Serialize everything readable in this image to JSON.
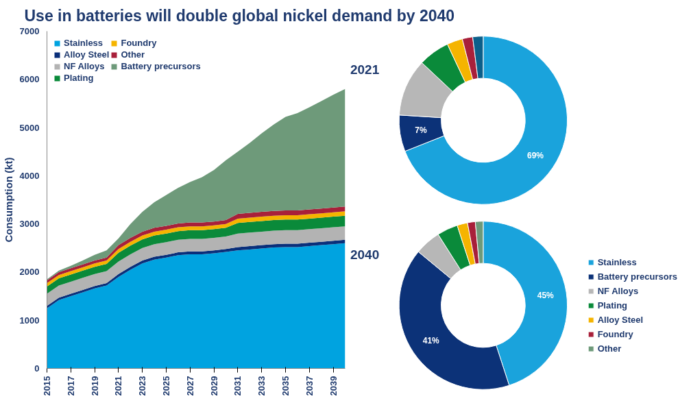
{
  "chart_data": [
    {
      "type": "area",
      "stacked": true,
      "title": "Use in batteries will double global nickel demand by 2040",
      "ylabel": "Consumption (kt)",
      "x": [
        2015,
        2016,
        2017,
        2018,
        2019,
        2020,
        2021,
        2022,
        2023,
        2024,
        2025,
        2026,
        2027,
        2028,
        2029,
        2030,
        2031,
        2032,
        2033,
        2034,
        2035,
        2036,
        2037,
        2038,
        2039,
        2040
      ],
      "xlim": [
        2015,
        2040
      ],
      "xticks": [
        2015,
        2017,
        2019,
        2021,
        2023,
        2025,
        2027,
        2029,
        2031,
        2033,
        2035,
        2037,
        2039
      ],
      "ylim": [
        0,
        7000
      ],
      "yticks": [
        0,
        1000,
        2000,
        3000,
        4000,
        5000,
        6000,
        7000
      ],
      "grid": false,
      "legend": "top left",
      "series": [
        {
          "name": "Stainless",
          "color": "#00a3e0",
          "values": [
            1250,
            1420,
            1500,
            1580,
            1660,
            1720,
            1900,
            2050,
            2180,
            2260,
            2300,
            2350,
            2370,
            2370,
            2390,
            2420,
            2450,
            2470,
            2490,
            2510,
            2520,
            2520,
            2540,
            2560,
            2580,
            2600
          ]
        },
        {
          "name": "Alloy Steel",
          "color": "#0a2f7a",
          "values": [
            50,
            50,
            50,
            50,
            50,
            50,
            60,
            60,
            60,
            60,
            60,
            60,
            60,
            60,
            60,
            60,
            70,
            70,
            70,
            70,
            70,
            70,
            70,
            70,
            70,
            70
          ]
        },
        {
          "name": "NF Alloys",
          "color": "#b3b3b3",
          "values": [
            250,
            250,
            250,
            250,
            250,
            250,
            260,
            260,
            260,
            260,
            260,
            260,
            260,
            260,
            260,
            260,
            280,
            280,
            280,
            280,
            280,
            280,
            280,
            280,
            280,
            280
          ]
        },
        {
          "name": "Plating",
          "color": "#0a8a3a",
          "values": [
            150,
            150,
            150,
            150,
            150,
            150,
            180,
            180,
            180,
            180,
            180,
            180,
            180,
            180,
            180,
            180,
            220,
            220,
            220,
            220,
            220,
            220,
            220,
            220,
            220,
            220
          ]
        },
        {
          "name": "Foundry",
          "color": "#f5b400",
          "values": [
            70,
            70,
            70,
            70,
            70,
            70,
            80,
            80,
            80,
            80,
            80,
            80,
            80,
            80,
            80,
            80,
            90,
            90,
            90,
            90,
            90,
            90,
            90,
            90,
            90,
            90
          ]
        },
        {
          "name": "Other",
          "color": "#a8203a",
          "values": [
            60,
            60,
            60,
            60,
            60,
            60,
            80,
            80,
            80,
            80,
            80,
            80,
            80,
            80,
            80,
            80,
            100,
            100,
            100,
            100,
            100,
            100,
            100,
            100,
            100,
            100
          ]
        },
        {
          "name": "Battery precursors",
          "color": "#6e9a7a",
          "values": [
            20,
            30,
            50,
            80,
            120,
            150,
            140,
            290,
            410,
            530,
            640,
            740,
            840,
            940,
            1070,
            1240,
            1290,
            1450,
            1630,
            1790,
            1940,
            2020,
            2120,
            2230,
            2340,
            2440
          ]
        }
      ]
    },
    {
      "type": "donut",
      "title": "2021",
      "categories": [
        null,
        null,
        null,
        null,
        null,
        null,
        null
      ],
      "values": [
        69,
        7,
        11,
        6,
        3,
        2,
        2
      ],
      "colors": [
        "#1aa3dc",
        "#0c3278",
        "#b7b7b7",
        "#0a8a3a",
        "#f5b400",
        "#a8203a",
        "#0b5f8a"
      ],
      "value_labels": [
        "69%",
        "7%",
        null,
        null,
        null,
        null,
        null
      ]
    },
    {
      "type": "donut",
      "title": "2040",
      "legend": "right",
      "categories": [
        "Stainless",
        "Battery precursors",
        "NF Alloys",
        "Plating",
        "Alloy Steel",
        "Foundry",
        "Other"
      ],
      "values": [
        45,
        41,
        5,
        4,
        2,
        1.5,
        1.5
      ],
      "colors": [
        "#1aa3dc",
        "#0c3278",
        "#b7b7b7",
        "#0a8a3a",
        "#f5b400",
        "#a8203a",
        "#6e9a7a"
      ],
      "value_labels": [
        "45%",
        "41%",
        null,
        null,
        null,
        null,
        null
      ]
    }
  ]
}
